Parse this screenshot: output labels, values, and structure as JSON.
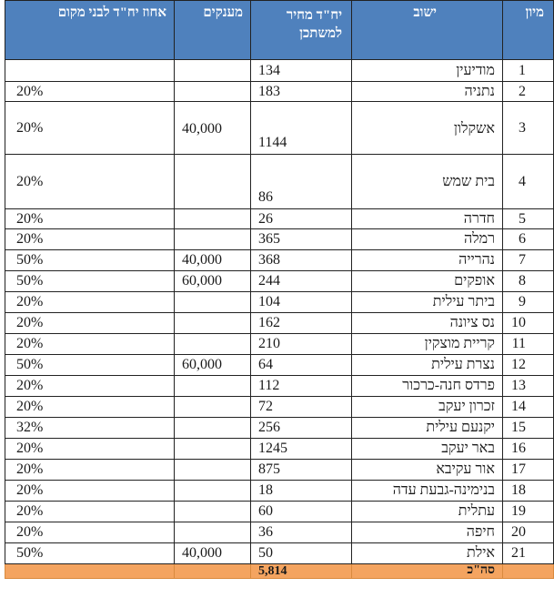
{
  "table": {
    "headers": {
      "rank": "מיון",
      "city": "ישוב",
      "price": "יח\"ד מחיר למשתכן",
      "grants": "מענקים",
      "local_pct": "אחוז יח\"ד לבני מקום"
    },
    "rows": [
      {
        "rank": "1",
        "city": "מודיעין",
        "price": "134",
        "grant": "",
        "pct": ""
      },
      {
        "rank": "2",
        "city": "נתניה",
        "price": "183",
        "grant": "",
        "pct": "20%"
      },
      {
        "rank": "3",
        "city": "אשקלון",
        "price": "1144",
        "grant": "40,000",
        "pct": "20%"
      },
      {
        "rank": "4",
        "city": "בית שמש",
        "price": "86",
        "grant": "",
        "pct": "20%"
      },
      {
        "rank": "5",
        "city": "חדרה",
        "price": "26",
        "grant": "",
        "pct": "20%"
      },
      {
        "rank": "6",
        "city": "רמלה",
        "price": "365",
        "grant": "",
        "pct": "20%"
      },
      {
        "rank": "7",
        "city": "נהרייה",
        "price": "368",
        "grant": "40,000",
        "pct": "50%"
      },
      {
        "rank": "8",
        "city": "אופקים",
        "price": "244",
        "grant": "60,000",
        "pct": "50%"
      },
      {
        "rank": "9",
        "city": "ביתר עילית",
        "price": "104",
        "grant": "",
        "pct": "20%"
      },
      {
        "rank": "10",
        "city": "נס ציונה",
        "price": "162",
        "grant": "",
        "pct": "20%"
      },
      {
        "rank": "11",
        "city": "קריית מוצקין",
        "price": "210",
        "grant": "",
        "pct": "20%"
      },
      {
        "rank": "12",
        "city": "נצרת עילית",
        "price": "64",
        "grant": "60,000",
        "pct": "50%"
      },
      {
        "rank": "13",
        "city": "פרדס חנה-כרכור",
        "price": "112",
        "grant": "",
        "pct": "20%"
      },
      {
        "rank": "14",
        "city": "זכרון יעקב",
        "price": "72",
        "grant": "",
        "pct": "20%"
      },
      {
        "rank": "15",
        "city": "יקנעם עילית",
        "price": "256",
        "grant": "",
        "pct": "32%"
      },
      {
        "rank": "16",
        "city": "באר יעקב",
        "price": "1245",
        "grant": "",
        "pct": "20%"
      },
      {
        "rank": "17",
        "city": "אור עקיבא",
        "price": "875",
        "grant": "",
        "pct": "20%"
      },
      {
        "rank": "18",
        "city": "בנימינה-גבעת עדה",
        "price": "18",
        "grant": "",
        "pct": "20%"
      },
      {
        "rank": "19",
        "city": "עתלית",
        "price": "60",
        "grant": "",
        "pct": "20%"
      },
      {
        "rank": "20",
        "city": "חיפה",
        "price": "36",
        "grant": "",
        "pct": "20%"
      },
      {
        "rank": "21",
        "city": "אילת",
        "price": "50",
        "grant": "40,000",
        "pct": "50%"
      }
    ],
    "total": {
      "label": "סה\"כ",
      "price": "5,814"
    }
  }
}
